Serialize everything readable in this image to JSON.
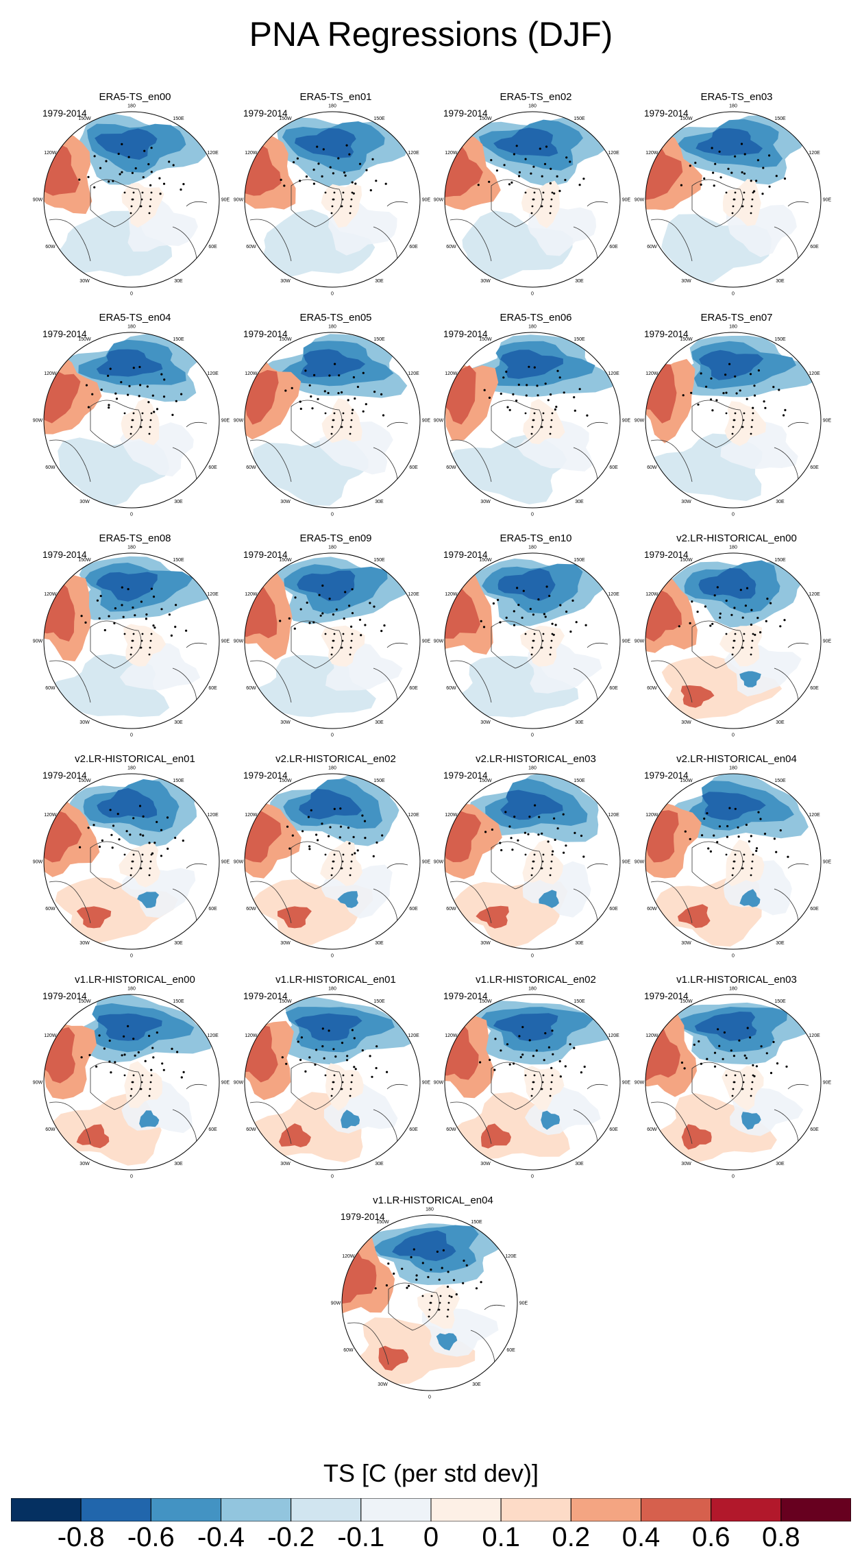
{
  "figure_title": "PNA Regressions (DJF)",
  "chart_data": {
    "type": "heatmap",
    "description_kind": "polar stereographic regression maps",
    "title": "PNA Regressions (DJF)",
    "period": "1979-2014",
    "panels": [
      {
        "title": "ERA5-TS_en00",
        "period": "1979-2014",
        "dataset": "ERA5"
      },
      {
        "title": "ERA5-TS_en01",
        "period": "1979-2014",
        "dataset": "ERA5"
      },
      {
        "title": "ERA5-TS_en02",
        "period": "1979-2014",
        "dataset": "ERA5"
      },
      {
        "title": "ERA5-TS_en03",
        "period": "1979-2014",
        "dataset": "ERA5"
      },
      {
        "title": "ERA5-TS_en04",
        "period": "1979-2014",
        "dataset": "ERA5"
      },
      {
        "title": "ERA5-TS_en05",
        "period": "1979-2014",
        "dataset": "ERA5"
      },
      {
        "title": "ERA5-TS_en06",
        "period": "1979-2014",
        "dataset": "ERA5"
      },
      {
        "title": "ERA5-TS_en07",
        "period": "1979-2014",
        "dataset": "ERA5"
      },
      {
        "title": "ERA5-TS_en08",
        "period": "1979-2014",
        "dataset": "ERA5"
      },
      {
        "title": "ERA5-TS_en09",
        "period": "1979-2014",
        "dataset": "ERA5"
      },
      {
        "title": "ERA5-TS_en10",
        "period": "1979-2014",
        "dataset": "ERA5"
      },
      {
        "title": "v2.LR-HISTORICAL_en00",
        "period": "1979-2014",
        "dataset": "v2"
      },
      {
        "title": "v2.LR-HISTORICAL_en01",
        "period": "1979-2014",
        "dataset": "v2"
      },
      {
        "title": "v2.LR-HISTORICAL_en02",
        "period": "1979-2014",
        "dataset": "v2"
      },
      {
        "title": "v2.LR-HISTORICAL_en03",
        "period": "1979-2014",
        "dataset": "v2"
      },
      {
        "title": "v2.LR-HISTORICAL_en04",
        "period": "1979-2014",
        "dataset": "v2"
      },
      {
        "title": "v1.LR-HISTORICAL_en00",
        "period": "1979-2014",
        "dataset": "v1"
      },
      {
        "title": "v1.LR-HISTORICAL_en01",
        "period": "1979-2014",
        "dataset": "v1"
      },
      {
        "title": "v1.LR-HISTORICAL_en02",
        "period": "1979-2014",
        "dataset": "v1"
      },
      {
        "title": "v1.LR-HISTORICAL_en03",
        "period": "1979-2014",
        "dataset": "v1"
      },
      {
        "title": "v1.LR-HISTORICAL_en04",
        "period": "1979-2014",
        "dataset": "v1"
      }
    ],
    "longitude_labels": [
      "180",
      "150E",
      "120E",
      "90E",
      "60E",
      "30E",
      "0",
      "30W",
      "60W",
      "90W",
      "120W",
      "150W"
    ],
    "colorbar": {
      "label": "TS [C (per std dev)]",
      "levels": [
        -0.8,
        -0.6,
        -0.4,
        -0.2,
        -0.1,
        0,
        0.1,
        0.2,
        0.4,
        0.6,
        0.8
      ],
      "level_labels": [
        "-0.8",
        "-0.6",
        "-0.4",
        "-0.2",
        "-0.1",
        "0",
        "0.1",
        "0.2",
        "0.4",
        "0.6",
        "0.8"
      ],
      "colors": [
        "#053061",
        "#2166ac",
        "#4393c3",
        "#92c5de",
        "#d1e5f0",
        "#eef3f8",
        "#fdf0e6",
        "#fddbc7",
        "#f4a582",
        "#d6604d",
        "#b2182b",
        "#67001f"
      ]
    }
  }
}
